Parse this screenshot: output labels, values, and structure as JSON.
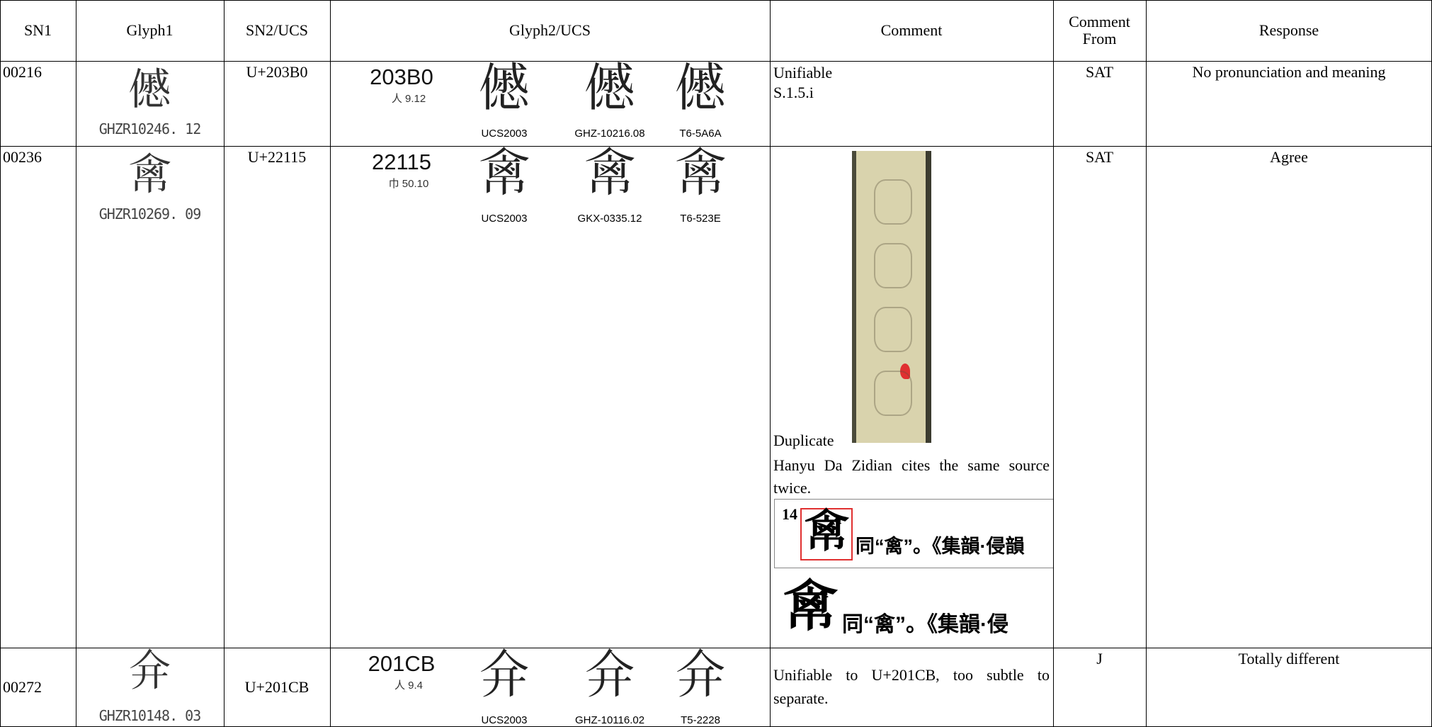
{
  "table": {
    "header": [
      "SN1",
      "Glyph1",
      "SN2/UCS",
      "Glyph2/UCS",
      "Comment",
      "Comment From",
      "Response"
    ],
    "rows": [
      {
        "sn1": "00216",
        "glyph1": {
          "char": "𠎰",
          "source": "GHZR10246. 12"
        },
        "sn2": "U+203B0",
        "glyph2": {
          "code": "203B0",
          "radical": "人 9.12",
          "glyphs": [
            {
              "char": "𠎰",
              "source": "UCS2003"
            },
            {
              "char": "𠎰",
              "source": "GHZ-10216.08"
            },
            {
              "char": "𠎰",
              "source": "T6-5A6A"
            }
          ]
        },
        "comment": [
          "Unifiable",
          "S.1.5.i"
        ],
        "comment_from": "SAT",
        "response": "No pronunciation and meaning"
      },
      {
        "sn1": "00236",
        "glyph1": {
          "char": "𢄕",
          "source": "GHZR10269. 09"
        },
        "sn2": "U+22115",
        "glyph2": {
          "code": "22115",
          "radical": "巾 50.10",
          "glyphs": [
            {
              "char": "𢄕",
              "source": "UCS2003"
            },
            {
              "char": "𢄕",
              "source": "GKX-0335.12"
            },
            {
              "char": "𢄕",
              "source": "T6-523E"
            }
          ]
        },
        "comment": [
          "Duplicate",
          "Hanyu Da Zidian cites the same source twice."
        ],
        "snippets": [
          {
            "number": "14",
            "char": "𢄕",
            "text": "同“禽”。《集韻·侵韻"
          },
          {
            "char": "𢄕",
            "text": "同“禽”。《集韻·侵"
          }
        ],
        "comment_from": "SAT",
        "response": "Agree"
      },
      {
        "sn1": "00272",
        "glyph1": {
          "char": "𠇋",
          "source": "GHZR10148. 03"
        },
        "sn2": "U+201CB",
        "glyph2": {
          "code": "201CB",
          "radical": "人 9.4",
          "glyphs": [
            {
              "char": "𠇋",
              "source": "UCS2003"
            },
            {
              "char": "𠇋",
              "source": "GHZ-10116.02"
            },
            {
              "char": "𠇋",
              "source": "T5-2228"
            }
          ]
        },
        "comment": [
          "Unifiable to U+201CB, too subtle to separate."
        ],
        "comment_from": "J",
        "response": "Totally different"
      }
    ]
  }
}
